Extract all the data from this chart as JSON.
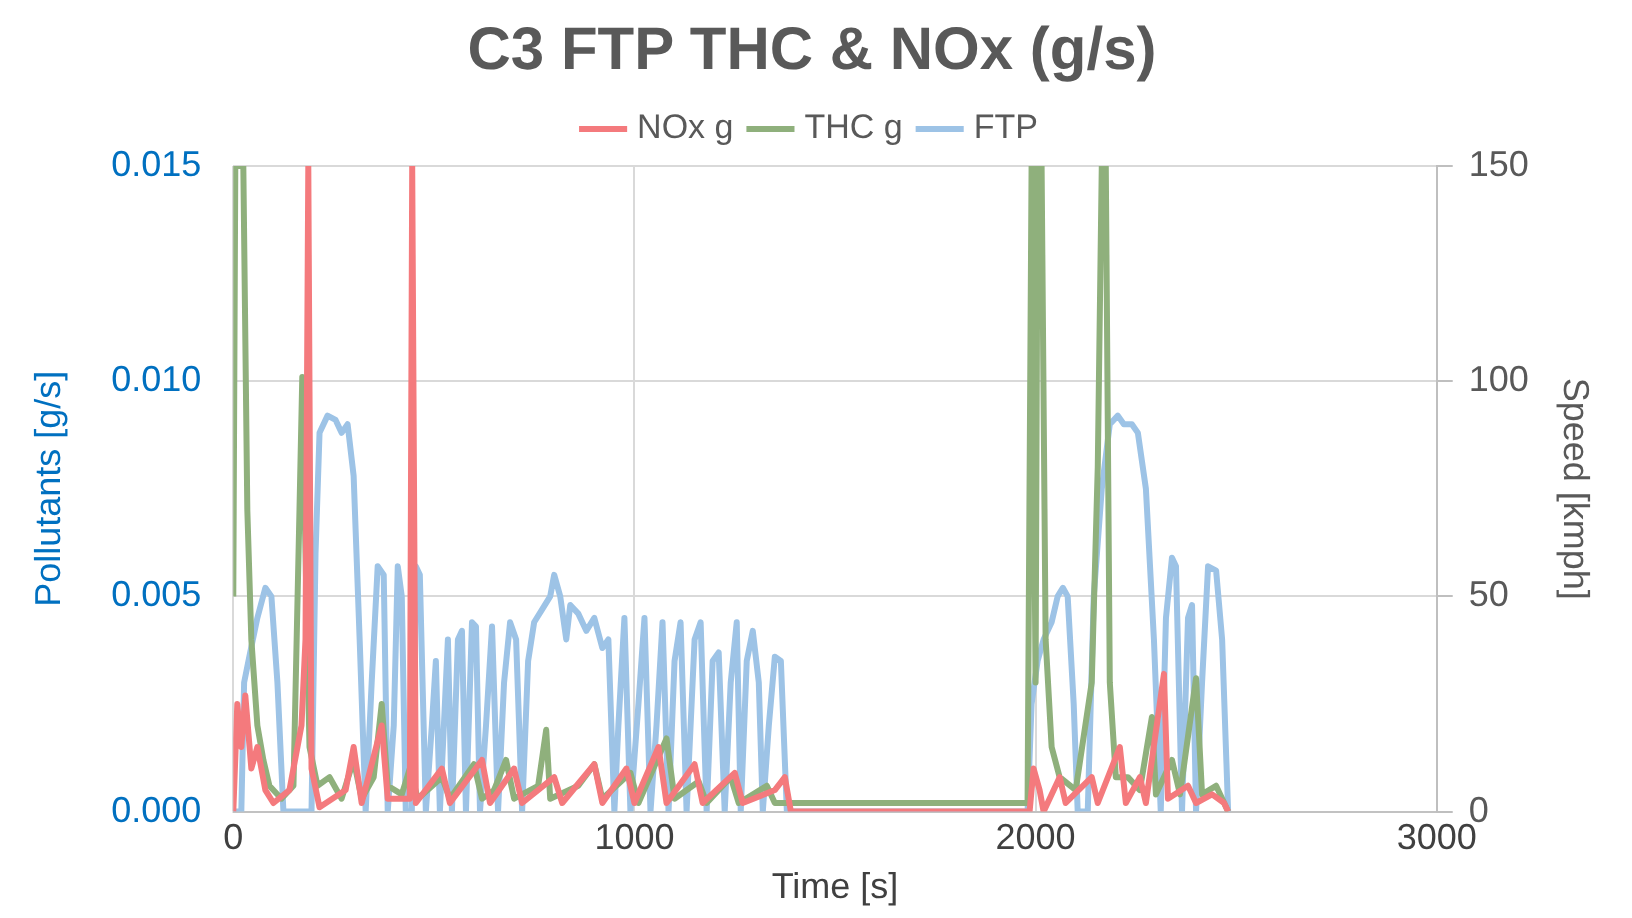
{
  "chart_data": {
    "type": "line",
    "title": "C3 FTP THC & NOx (g/s)",
    "xlabel": "Time [s]",
    "ylabel": "Pollutants [g/s]",
    "y2label": "Speed [kmph]",
    "xlim": [
      0,
      3000
    ],
    "xticks": [
      0,
      1000,
      2000,
      3000
    ],
    "ylim": [
      0,
      0.015
    ],
    "yticks": [
      {
        "value": 0,
        "label": "0.000"
      },
      {
        "value": 0.005,
        "label": "0.005"
      },
      {
        "value": 0.01,
        "label": "0.010"
      },
      {
        "value": 0.015,
        "label": "0.015"
      }
    ],
    "y2lim": [
      0,
      150
    ],
    "y2ticks": [
      0,
      50,
      100,
      150
    ],
    "grid": true,
    "legend": "top",
    "marker": "none",
    "line_style": "solid",
    "series": [
      {
        "name": "NOx g",
        "color": "#f47a7d",
        "x": [
          0,
          10,
          20,
          30,
          45,
          60,
          80,
          100,
          140,
          170,
          180,
          187,
          195,
          215,
          280,
          300,
          320,
          370,
          385,
          440,
          446,
          455,
          520,
          540,
          620,
          640,
          700,
          720,
          800,
          820,
          900,
          920,
          980,
          1000,
          1060,
          1080,
          1150,
          1170,
          1250,
          1270,
          1350,
          1375,
          1390,
          1985,
          1995,
          2010,
          2020,
          2060,
          2075,
          2140,
          2155,
          2210,
          2225,
          2260,
          2275,
          2320,
          2330,
          2380,
          2400,
          2440,
          2470,
          2480
        ],
        "values": [
          0,
          0.0025,
          0.0015,
          0.0027,
          0.001,
          0.0015,
          0.0005,
          0.0002,
          0.0005,
          0.002,
          0.004,
          0.015,
          0.001,
          0.0001,
          0.0005,
          0.0015,
          0.0002,
          0.002,
          0.0003,
          0.0003,
          0.015,
          0.0002,
          0.001,
          0.0002,
          0.0012,
          0.0002,
          0.001,
          0.0002,
          0.0008,
          0.0002,
          0.0011,
          0.0002,
          0.001,
          0.0002,
          0.0015,
          0.0002,
          0.0011,
          0.0002,
          0.0009,
          0.0002,
          0.0005,
          0.0008,
          0,
          0,
          0.001,
          0.0005,
          0,
          0.0008,
          0.0002,
          0.0008,
          0.0002,
          0.0015,
          0.0002,
          0.0008,
          0.0002,
          0.0032,
          0.0003,
          0.0006,
          0.0002,
          0.0004,
          0.0002,
          0
        ]
      },
      {
        "name": "THC g",
        "color": "#8fb07c",
        "x": [
          0,
          5,
          25,
          35,
          45,
          60,
          75,
          90,
          120,
          150,
          165,
          172,
          180,
          190,
          210,
          240,
          270,
          300,
          320,
          350,
          370,
          385,
          420,
          440,
          460,
          520,
          540,
          600,
          620,
          650,
          680,
          700,
          760,
          780,
          790,
          860,
          900,
          920,
          990,
          1010,
          1080,
          1100,
          1160,
          1180,
          1240,
          1260,
          1330,
          1350,
          1400,
          1980,
          1990,
          2000,
          2005,
          2015,
          2025,
          2040,
          2060,
          2100,
          2140,
          2155,
          2165,
          2175,
          2185,
          2200,
          2230,
          2260,
          2290,
          2300,
          2340,
          2360,
          2400,
          2415,
          2450,
          2480
        ],
        "values": [
          0.005,
          0.015,
          0.015,
          0.007,
          0.004,
          0.002,
          0.0012,
          0.0006,
          0.0003,
          0.0006,
          0.007,
          0.0101,
          0.006,
          0.0015,
          0.0006,
          0.0008,
          0.0003,
          0.0012,
          0.0003,
          0.0008,
          0.0025,
          0.0006,
          0.0004,
          0.001,
          0.0003,
          0.0008,
          0.0003,
          0.0011,
          0.0003,
          0.0005,
          0.0012,
          0.0003,
          0.0006,
          0.0019,
          0.0003,
          0.0006,
          0.0011,
          0.0003,
          0.0009,
          0.0002,
          0.0017,
          0.0003,
          0.0007,
          0.0002,
          0.0008,
          0.0002,
          0.0006,
          0.0002,
          0.0002,
          0.0002,
          0.015,
          0.003,
          0.015,
          0.015,
          0.004,
          0.0015,
          0.0008,
          0.0005,
          0.003,
          0.008,
          0.015,
          0.015,
          0.003,
          0.0008,
          0.0008,
          0.0005,
          0.0022,
          0.0004,
          0.0012,
          0.0004,
          0.0031,
          0.0004,
          0.0006,
          0
        ]
      },
      {
        "name": "FTP",
        "color": "#9dc3e6",
        "axis": "y2",
        "x": [
          0,
          20,
          27,
          40,
          60,
          80,
          95,
          110,
          125,
          195,
          205,
          215,
          235,
          255,
          270,
          285,
          300,
          315,
          330,
          345,
          360,
          375,
          385,
          400,
          410,
          420,
          430,
          445,
          455,
          465,
          480,
          495,
          505,
          515,
          535,
          545,
          560,
          570,
          580,
          595,
          605,
          615,
          630,
          645,
          660,
          675,
          690,
          705,
          720,
          735,
          750,
          770,
          790,
          800,
          815,
          830,
          840,
          860,
          880,
          900,
          920,
          935,
          950,
          960,
          975,
          990,
          1010,
          1025,
          1040,
          1055,
          1070,
          1085,
          1100,
          1115,
          1130,
          1150,
          1165,
          1180,
          1195,
          1210,
          1225,
          1240,
          1255,
          1265,
          1280,
          1295,
          1310,
          1320,
          1335,
          1350,
          1365,
          1380,
          1980,
          1990,
          2005,
          2020,
          2040,
          2055,
          2068,
          2080,
          2095,
          2105,
          2130,
          2145,
          2165,
          2185,
          2205,
          2220,
          2240,
          2255,
          2275,
          2295,
          2312,
          2325,
          2340,
          2350,
          2365,
          2380,
          2390,
          2400,
          2415,
          2430,
          2450,
          2465,
          2480
        ],
        "values": [
          0,
          0,
          30,
          36,
          45,
          52,
          50,
          30,
          0,
          0,
          60,
          88,
          92,
          91,
          88,
          90,
          78,
          40,
          0,
          30,
          57,
          55,
          0,
          20,
          57,
          50,
          0,
          0,
          57,
          55,
          0,
          20,
          35,
          0,
          40,
          0,
          40,
          42,
          0,
          44,
          43,
          0,
          20,
          43,
          0,
          30,
          44,
          40,
          0,
          35,
          44,
          47,
          50,
          55,
          50,
          40,
          48,
          46,
          42,
          45,
          38,
          40,
          0,
          20,
          45,
          0,
          25,
          45,
          0,
          20,
          44,
          0,
          35,
          44,
          0,
          40,
          44,
          0,
          35,
          37,
          0,
          30,
          44,
          0,
          35,
          42,
          30,
          0,
          20,
          36,
          35,
          0,
          0,
          25,
          35,
          40,
          44,
          50,
          52,
          50,
          25,
          0,
          0,
          50,
          75,
          90,
          92,
          90,
          90,
          88,
          75,
          40,
          0,
          45,
          59,
          57,
          0,
          45,
          48,
          0,
          30,
          57,
          56,
          40,
          0
        ]
      }
    ]
  }
}
